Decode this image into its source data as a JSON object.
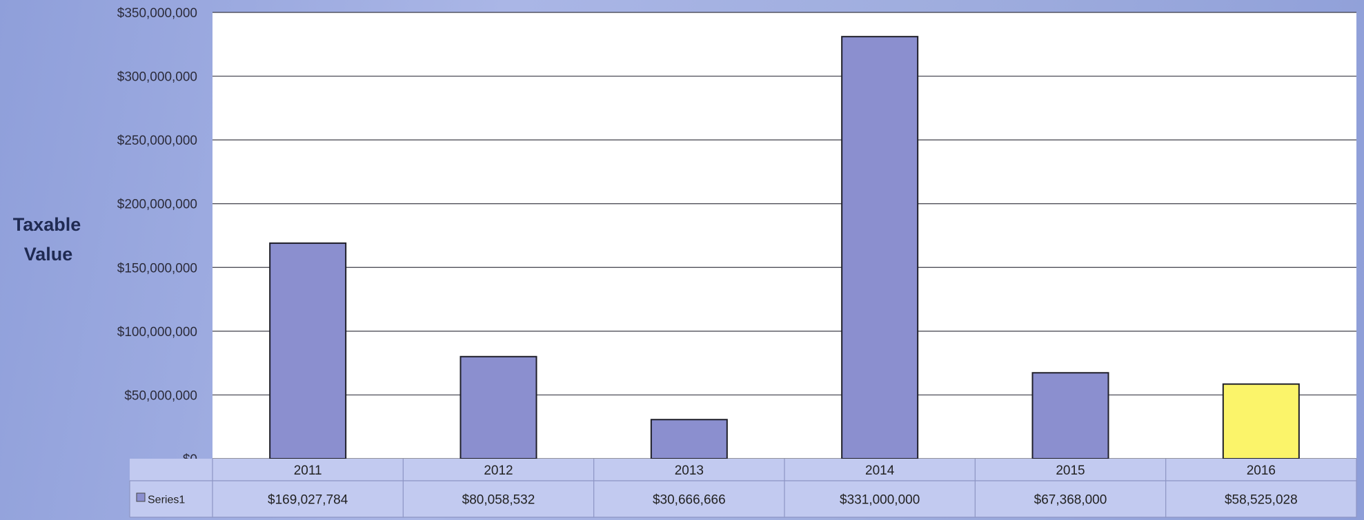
{
  "chart_data": {
    "type": "bar",
    "ylabel_lines": [
      "Taxable",
      "Value"
    ],
    "categories": [
      "2011",
      "2012",
      "2013",
      "2014",
      "2015",
      "2016"
    ],
    "series": [
      {
        "name": "Series1",
        "values": [
          169027784,
          80058532,
          30666666,
          331000000,
          67368000,
          58525028
        ],
        "value_labels": [
          "$169,027,784",
          "$80,058,532",
          "$30,666,666",
          "$331,000,000",
          "$67,368,000",
          "$58,525,028"
        ],
        "colors": [
          "#8b8fcf",
          "#8b8fcf",
          "#8b8fcf",
          "#8b8fcf",
          "#8b8fcf",
          "#fbf46a"
        ]
      }
    ],
    "yticks": [
      {
        "value": 0,
        "label": "$0"
      },
      {
        "value": 50000000,
        "label": "$50,000,000"
      },
      {
        "value": 100000000,
        "label": "$100,000,000"
      },
      {
        "value": 150000000,
        "label": "$150,000,000"
      },
      {
        "value": 200000000,
        "label": "$200,000,000"
      },
      {
        "value": 250000000,
        "label": "$250,000,000"
      },
      {
        "value": 300000000,
        "label": "$300,000,000"
      },
      {
        "value": 350000000,
        "label": "$350,000,000"
      }
    ],
    "ylim": [
      0,
      350000000
    ],
    "grid": true,
    "legend": "data-table-left",
    "data_table": true
  }
}
